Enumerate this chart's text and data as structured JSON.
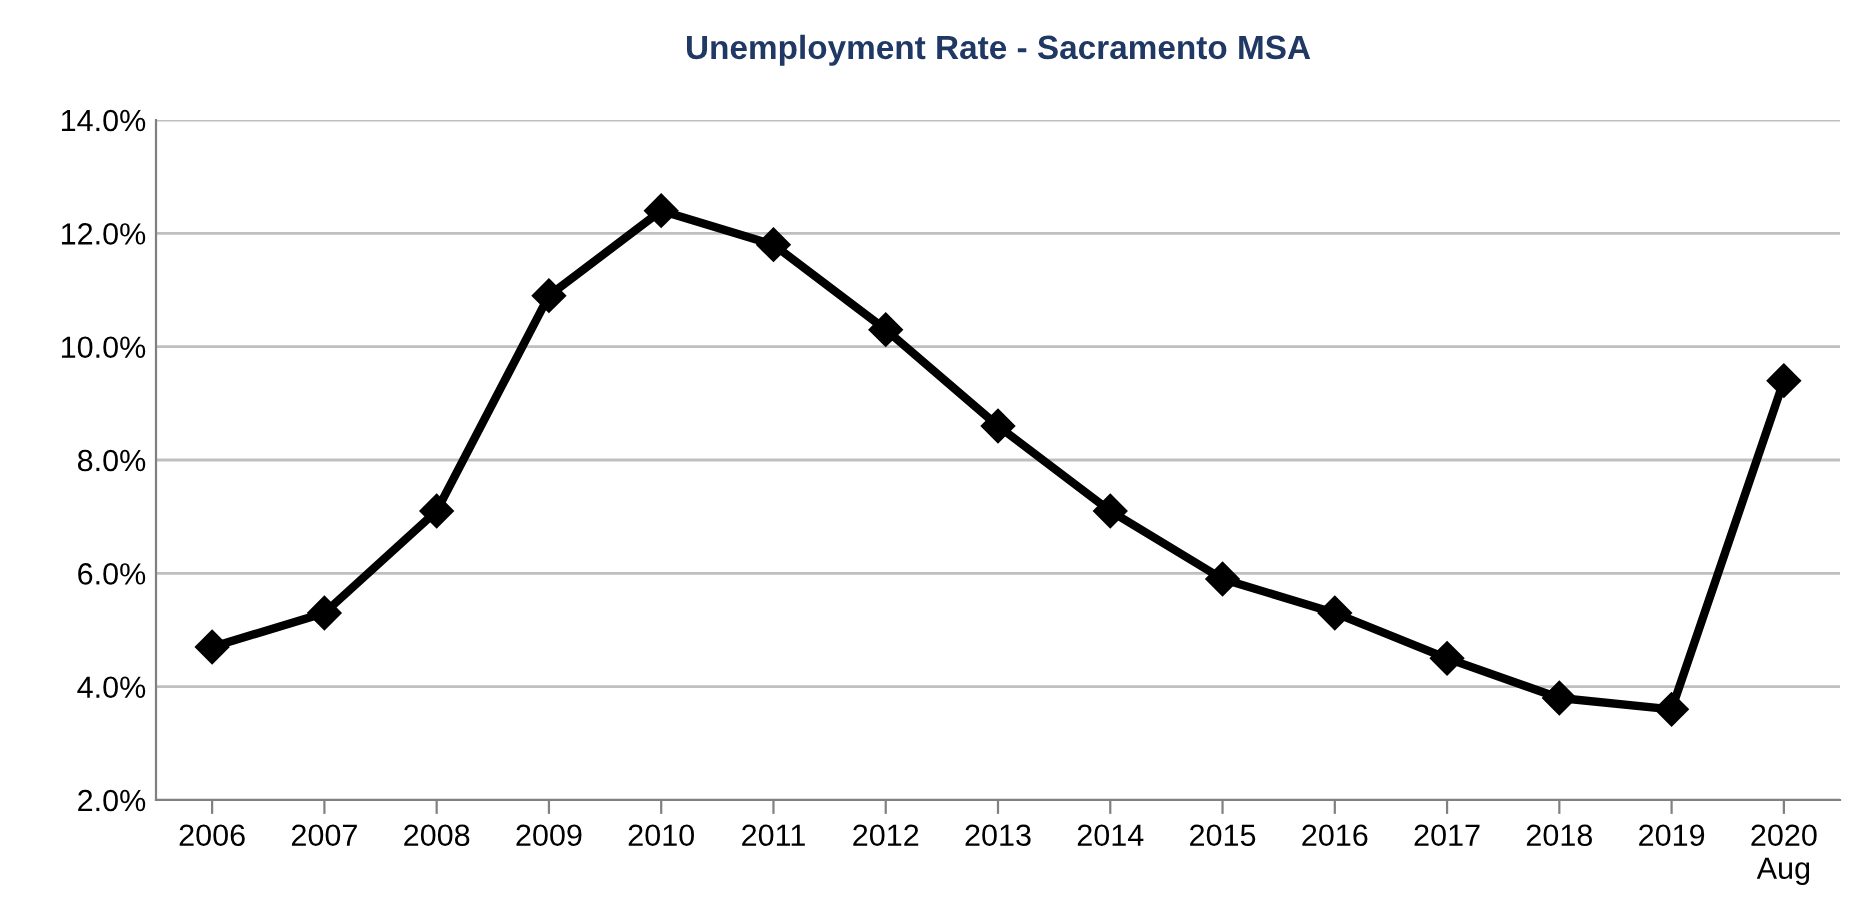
{
  "chart_data": {
    "type": "line",
    "title": "Unemployment Rate - Sacramento MSA",
    "categories": [
      "2006",
      "2007",
      "2008",
      "2009",
      "2010",
      "2011",
      "2012",
      "2013",
      "2014",
      "2015",
      "2016",
      "2017",
      "2018",
      "2019",
      "2020\nAug"
    ],
    "series": [
      {
        "color": "#000000",
        "values": [
          4.7,
          5.3,
          7.1,
          10.9,
          12.4,
          11.8,
          10.3,
          8.6,
          7.1,
          5.9,
          5.3,
          4.5,
          3.8,
          3.6,
          9.4
        ]
      }
    ],
    "ylim": [
      2,
      14
    ],
    "yticks": [
      {
        "value": 2,
        "label": "2.0%"
      },
      {
        "value": 4,
        "label": "4.0%"
      },
      {
        "value": 6,
        "label": "6.0%"
      },
      {
        "value": 8,
        "label": "8.0%"
      },
      {
        "value": 10,
        "label": "10.0%"
      },
      {
        "value": 12,
        "label": "12.0%"
      },
      {
        "value": 14,
        "label": "14.0%"
      }
    ],
    "grid": "y",
    "marker": "diamond",
    "line_style": "solid"
  }
}
